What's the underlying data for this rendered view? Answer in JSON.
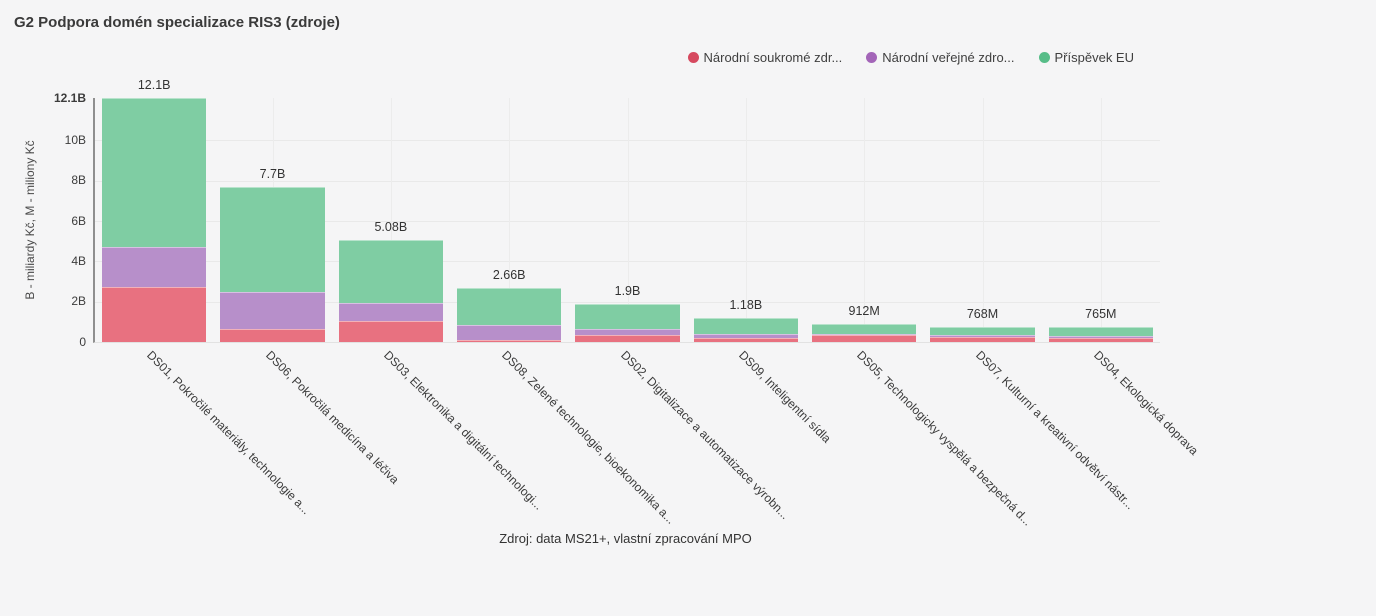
{
  "title": "G2 Podpora domén specializace RIS3 (zdroje)",
  "footer": "Zdroj: data MS21+, vlastní zpracování MPO",
  "colors": {
    "background": "#f5f5f6",
    "grid": "#e9e9e9",
    "axis": "#8f8f8f",
    "series_private": "#e87180",
    "series_public": "#b78fca",
    "series_eu": "#7fcda3"
  },
  "chart_data": {
    "type": "bar",
    "stacked": true,
    "title": "G2 Podpora domén specializace RIS3 (zdroje)",
    "ylabel": "B - miliardy Kč, M - miliony Kč",
    "xlabel": "",
    "ylim": [
      0,
      12.1
    ],
    "grid": true,
    "legend_position": "top-right",
    "categories": [
      "DS01, Pokročilé materiály, technologie a...",
      "DS06, Pokročilá medicína a léčiva",
      "DS03, Elektronika a digitální technologi...",
      "DS08, Zelené technologie, bioekonomika a...",
      "DS02, Digitalizace a automatizace výrobn...",
      "DS09, Inteligentní sídla",
      "DS05, Technologicky vyspělá a bezpečná d...",
      "DS07, Kulturní a kreativní odvětví nástr...",
      "DS04, Ekologická doprava"
    ],
    "series": [
      {
        "name": "Národní soukromé zdr...",
        "color": "#e87180",
        "legend_color": "#d6495f",
        "values": [
          2.73,
          0.66,
          1.06,
          0.12,
          0.33,
          0.2,
          0.33,
          0.23,
          0.22
        ]
      },
      {
        "name": "Národní veřejné zdro...",
        "color": "#b78fca",
        "legend_color": "#a365b8",
        "values": [
          1.97,
          1.84,
          0.86,
          0.7,
          0.32,
          0.2,
          0.05,
          0.1,
          0.1
        ]
      },
      {
        "name": "Příspěvek EU",
        "color": "#7fcda3",
        "legend_color": "#57bd88",
        "values": [
          7.4,
          5.2,
          3.16,
          1.84,
          1.25,
          0.78,
          0.532,
          0.438,
          0.445
        ]
      }
    ],
    "totals": [
      12.1,
      7.7,
      5.08,
      2.66,
      1.9,
      1.18,
      0.912,
      0.768,
      0.765
    ],
    "total_labels": [
      "12.1B",
      "7.7B",
      "5.08B",
      "2.66B",
      "1.9B",
      "1.18B",
      "912M",
      "768M",
      "765M"
    ],
    "y_ticks": [
      {
        "label": "12.1B",
        "value": 12.1,
        "bold": true
      },
      {
        "label": "10B",
        "value": 10,
        "bold": false
      },
      {
        "label": "8B",
        "value": 8,
        "bold": false
      },
      {
        "label": "6B",
        "value": 6,
        "bold": false
      },
      {
        "label": "4B",
        "value": 4,
        "bold": false
      },
      {
        "label": "2B",
        "value": 2,
        "bold": false
      },
      {
        "label": "0",
        "value": 0,
        "bold": false
      }
    ],
    "h_gridline_values": [
      2,
      4,
      6,
      8,
      10
    ]
  }
}
